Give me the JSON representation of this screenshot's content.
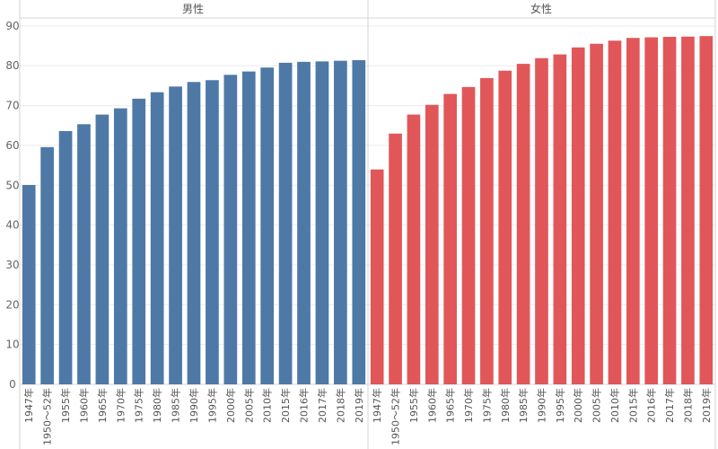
{
  "chart_data": {
    "type": "bar",
    "title": "",
    "xlabel": "",
    "ylabel": "",
    "ylim": [
      0,
      92
    ],
    "yticks": [
      0,
      10,
      20,
      30,
      40,
      50,
      60,
      70,
      80,
      90
    ],
    "grid": true,
    "categories": [
      "1947年",
      "1950～52年",
      "1955年",
      "1960年",
      "1965年",
      "1970年",
      "1975年",
      "1980年",
      "1985年",
      "1990年",
      "1995年",
      "2000年",
      "2005年",
      "2010年",
      "2015年",
      "2016年",
      "2017年",
      "2018年",
      "2019年"
    ],
    "series": [
      {
        "name": "男性",
        "color": "#4e79a7",
        "values": [
          50.06,
          59.57,
          63.6,
          65.32,
          67.74,
          69.31,
          71.73,
          73.35,
          74.78,
          75.92,
          76.38,
          77.72,
          78.56,
          79.55,
          80.75,
          80.98,
          81.09,
          81.25,
          81.41
        ]
      },
      {
        "name": "女性",
        "color": "#e15759",
        "values": [
          53.96,
          62.97,
          67.75,
          70.19,
          72.92,
          74.66,
          76.89,
          78.76,
          80.48,
          81.9,
          82.85,
          84.6,
          85.52,
          86.3,
          86.99,
          87.14,
          87.26,
          87.32,
          87.45
        ]
      }
    ]
  }
}
